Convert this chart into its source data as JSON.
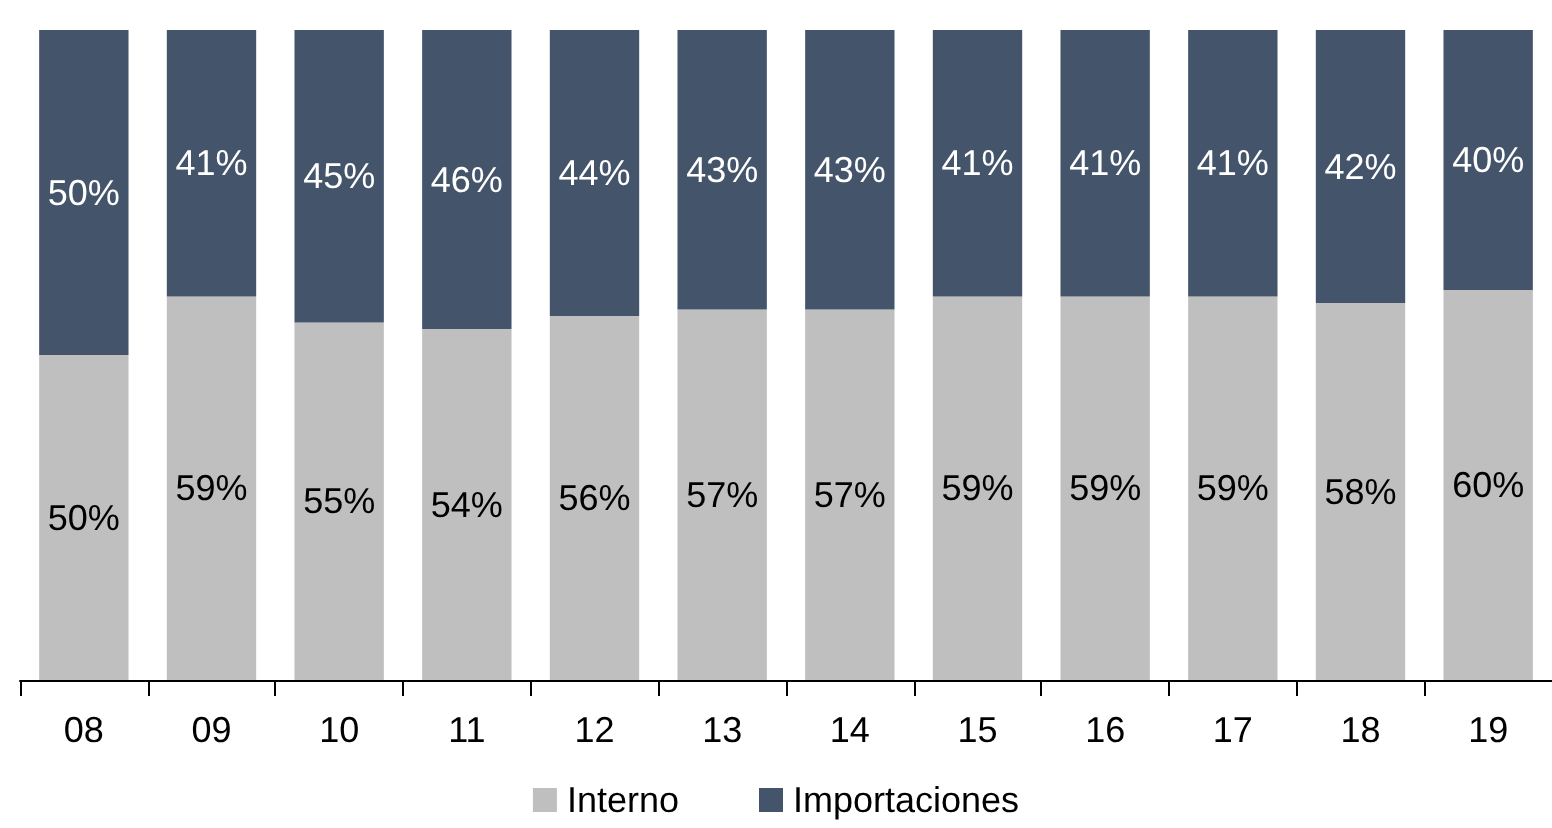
{
  "chart_data": {
    "type": "bar",
    "stacked": true,
    "categories": [
      "08",
      "09",
      "10",
      "11",
      "12",
      "13",
      "14",
      "15",
      "16",
      "17",
      "18",
      "19"
    ],
    "series": [
      {
        "name": "Interno",
        "color": "#bfbfbf",
        "values": [
          50,
          59,
          55,
          54,
          56,
          57,
          57,
          59,
          59,
          59,
          58,
          60
        ],
        "value_labels": [
          "50%",
          "59%",
          "55%",
          "54%",
          "56%",
          "57%",
          "57%",
          "59%",
          "59%",
          "59%",
          "58%",
          "60%"
        ]
      },
      {
        "name": "Importaciones",
        "color": "#44546a",
        "values": [
          50,
          41,
          45,
          46,
          44,
          43,
          43,
          41,
          41,
          41,
          42,
          40
        ],
        "value_labels": [
          "50%",
          "41%",
          "45%",
          "46%",
          "44%",
          "43%",
          "43%",
          "41%",
          "41%",
          "41%",
          "42%",
          "40%"
        ]
      }
    ],
    "tick_labels": "x",
    "legend": "bottom"
  }
}
